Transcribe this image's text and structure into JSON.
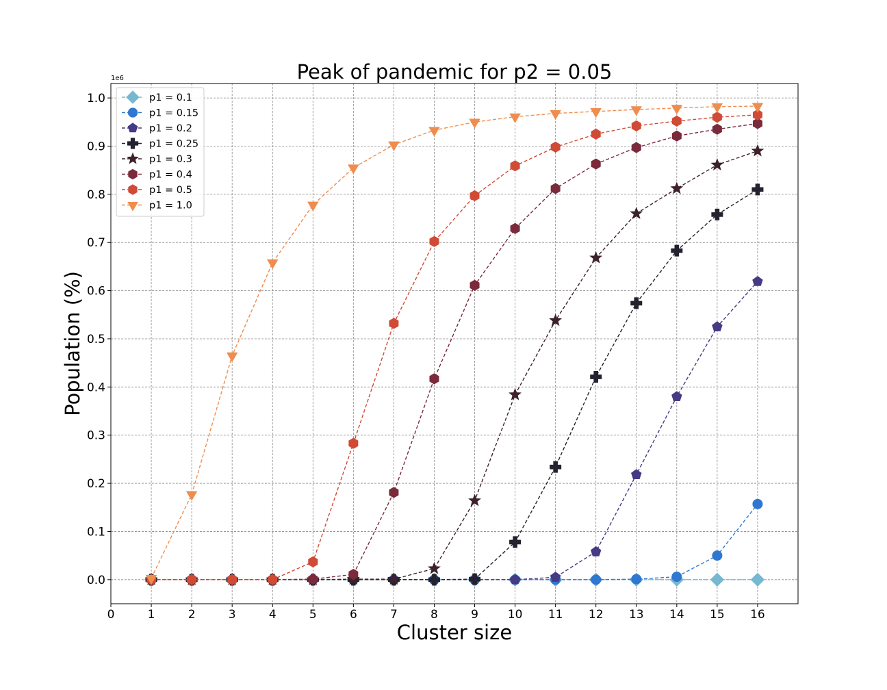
{
  "chart_data": {
    "type": "line",
    "title": "Peak of pandemic for p2 = 0.05",
    "xlabel": "Cluster size",
    "ylabel": "Population (%)",
    "y_offset_label": "1e6",
    "xlim": [
      0,
      17
    ],
    "ylim": [
      -0.05,
      1.03
    ],
    "x_ticks": [
      "0",
      "1",
      "2",
      "3",
      "4",
      "5",
      "6",
      "7",
      "8",
      "9",
      "10",
      "11",
      "12",
      "13",
      "14",
      "15",
      "16"
    ],
    "y_ticks": [
      "0.0",
      "0.1",
      "0.2",
      "0.3",
      "0.4",
      "0.5",
      "0.6",
      "0.7",
      "0.8",
      "0.9",
      "1.0"
    ],
    "grid": true,
    "legend_position": "upper left",
    "x": [
      1,
      2,
      3,
      4,
      5,
      6,
      7,
      8,
      9,
      10,
      11,
      12,
      13,
      14,
      15,
      16
    ],
    "series": [
      {
        "name": "p1 = 0.1",
        "color": "#77b8d1",
        "marker": "diamond",
        "values": [
          0,
          0,
          0,
          0,
          0,
          0,
          0,
          0,
          0,
          0,
          0,
          0,
          0,
          0,
          0,
          0
        ]
      },
      {
        "name": "p1 = 0.15",
        "color": "#2f77d1",
        "marker": "circle",
        "values": [
          0,
          0,
          0,
          0,
          0,
          0,
          0,
          0,
          0,
          0,
          0,
          0,
          0.001,
          0.006,
          0.05,
          0.157
        ]
      },
      {
        "name": "p1 = 0.2",
        "color": "#443b84",
        "marker": "pentagon",
        "values": [
          0,
          0,
          0,
          0,
          0,
          0,
          0,
          0,
          0,
          0,
          0.005,
          0.058,
          0.218,
          0.38,
          0.525,
          0.619
        ]
      },
      {
        "name": "p1 = 0.25",
        "color": "#23222e",
        "marker": "plus",
        "values": [
          0,
          0,
          0,
          0,
          0,
          0,
          0,
          0,
          0.001,
          0.078,
          0.234,
          0.421,
          0.574,
          0.683,
          0.758,
          0.81
        ]
      },
      {
        "name": "p1 = 0.3",
        "color": "#3d2229",
        "marker": "star",
        "values": [
          0,
          0,
          0,
          0,
          0,
          0.001,
          0.001,
          0.023,
          0.164,
          0.384,
          0.538,
          0.668,
          0.76,
          0.812,
          0.861,
          0.89
        ]
      },
      {
        "name": "p1 = 0.4",
        "color": "#7a2a3b",
        "marker": "hexagon",
        "values": [
          0,
          0,
          0,
          0,
          0.001,
          0.011,
          0.181,
          0.417,
          0.611,
          0.729,
          0.812,
          0.863,
          0.897,
          0.921,
          0.935,
          0.947
        ]
      },
      {
        "name": "p1 = 0.5",
        "color": "#d04a35",
        "marker": "hexagon",
        "values": [
          0,
          0,
          0,
          0,
          0.037,
          0.283,
          0.532,
          0.702,
          0.797,
          0.859,
          0.898,
          0.925,
          0.942,
          0.952,
          0.96,
          0.965
        ]
      },
      {
        "name": "p1 = 1.0",
        "color": "#ef8d4e",
        "marker": "triangle-down",
        "values": [
          0.003,
          0.177,
          0.465,
          0.658,
          0.778,
          0.855,
          0.903,
          0.933,
          0.95,
          0.961,
          0.968,
          0.972,
          0.976,
          0.979,
          0.982,
          0.983
        ]
      }
    ]
  }
}
